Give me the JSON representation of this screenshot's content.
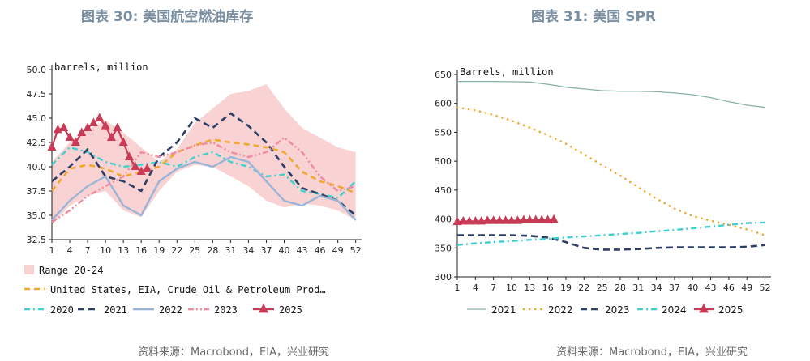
{
  "titles": {
    "left": "图表 30: 美国航空燃油库存",
    "right": "图表 31: 美国 SPR"
  },
  "sources": {
    "left": "资料来源：Macrobond，EIA，兴业研究",
    "right": "资料来源：Macrobond，EIA，兴业研究"
  },
  "colors": {
    "range": "#f9d3d3",
    "avg": "#f0a830",
    "y2020": "#40cfcf",
    "y2021": "#2e3f66",
    "y2022": "#9ab4d8",
    "y2023": "#f08a9e",
    "y2025": "#c83a55",
    "y2021_spr": "#86b2a6"
  },
  "chart_data": [
    {
      "id": "jet-fuel",
      "type": "line",
      "ylabel": "barrels, million",
      "ylim": [
        32.5,
        50
      ],
      "yticks": [
        "32.5",
        "35.0",
        "37.5",
        "40.0",
        "42.5",
        "45.0",
        "47.5",
        "50.0"
      ],
      "xlim": [
        1,
        53
      ],
      "xticks": [
        "1",
        "4",
        "7",
        "10",
        "13",
        "16",
        "19",
        "22",
        "25",
        "28",
        "31",
        "34",
        "37",
        "40",
        "43",
        "46",
        "49",
        "52"
      ],
      "range": {
        "name": "Range 20-24",
        "x": [
          1,
          4,
          7,
          10,
          13,
          16,
          19,
          22,
          25,
          28,
          31,
          34,
          37,
          40,
          43,
          46,
          49,
          52
        ],
        "low": [
          34.0,
          36.0,
          37.0,
          37.5,
          35.5,
          34.8,
          37.5,
          39.5,
          40.2,
          40.0,
          39.0,
          38.0,
          36.5,
          35.8,
          36.2,
          36.0,
          35.5,
          34.5
        ],
        "high": [
          40.5,
          42.5,
          43.8,
          44.8,
          43.5,
          42.0,
          40.5,
          41.8,
          44.5,
          46.0,
          47.5,
          47.8,
          48.5,
          46.0,
          44.0,
          43.0,
          42.0,
          41.5
        ]
      },
      "series": [
        {
          "name": "United States, EIA, Crude Oil & Petroleum Prod…",
          "key": "avg",
          "style": "dash-thick",
          "x": [
            1,
            4,
            7,
            10,
            13,
            16,
            19,
            22,
            25,
            28,
            31,
            34,
            37,
            40,
            43,
            46,
            49,
            52
          ],
          "y": [
            37.5,
            39.8,
            40.2,
            39.8,
            39.0,
            39.5,
            40.0,
            41.5,
            42.2,
            42.8,
            42.5,
            42.3,
            42.0,
            41.5,
            39.5,
            38.5,
            38.0,
            37.3
          ]
        },
        {
          "name": "2020",
          "key": "y2020",
          "style": "dashdot",
          "x": [
            1,
            4,
            7,
            10,
            13,
            16,
            19,
            22,
            25,
            28,
            31,
            34,
            37,
            40,
            43,
            46,
            49,
            52
          ],
          "y": [
            40.2,
            42.0,
            41.5,
            40.5,
            40.0,
            40.2,
            40.5,
            40.0,
            41.0,
            41.5,
            40.5,
            40.0,
            39.0,
            39.2,
            37.5,
            37.2,
            36.8,
            38.5
          ]
        },
        {
          "name": "2021",
          "key": "y2021",
          "style": "dash",
          "x": [
            1,
            4,
            7,
            10,
            13,
            16,
            19,
            22,
            25,
            28,
            31,
            34,
            37,
            40,
            43,
            46,
            49,
            52
          ],
          "y": [
            38.5,
            40.0,
            41.8,
            39.0,
            38.5,
            37.5,
            41.0,
            42.5,
            45.0,
            44.0,
            45.5,
            44.2,
            42.5,
            40.0,
            37.8,
            37.2,
            36.5,
            35.0
          ]
        },
        {
          "name": "2022",
          "key": "y2022",
          "style": "solid",
          "x": [
            1,
            4,
            7,
            10,
            13,
            16,
            19,
            22,
            25,
            28,
            31,
            34,
            37,
            40,
            43,
            46,
            49,
            52
          ],
          "y": [
            34.5,
            36.5,
            38.0,
            39.0,
            36.0,
            35.0,
            38.5,
            39.8,
            40.5,
            40.0,
            41.0,
            40.5,
            38.5,
            36.5,
            36.0,
            37.0,
            36.5,
            34.5
          ]
        },
        {
          "name": "2023",
          "key": "y2023",
          "style": "dashdotdot",
          "x": [
            1,
            4,
            7,
            10,
            13,
            16,
            19,
            22,
            25,
            28,
            31,
            34,
            37,
            40,
            43,
            46,
            49,
            52
          ],
          "y": [
            34.3,
            35.5,
            37.0,
            38.0,
            39.0,
            41.5,
            41.0,
            41.5,
            42.2,
            42.5,
            41.5,
            41.0,
            41.5,
            43.0,
            41.5,
            39.0,
            37.5,
            38.0
          ]
        },
        {
          "name": "2025",
          "key": "y2025",
          "style": "triangle",
          "x": [
            1,
            2,
            3,
            4,
            5,
            6,
            7,
            8,
            9,
            10,
            11,
            12,
            13,
            14,
            15,
            16,
            17
          ],
          "y": [
            42.0,
            43.8,
            44.0,
            43.0,
            42.5,
            43.5,
            44.0,
            44.5,
            45.0,
            44.2,
            43.0,
            44.0,
            42.5,
            41.0,
            40.0,
            39.5,
            39.8
          ]
        }
      ],
      "legend": [
        {
          "label": "Range 20-24",
          "key": "range",
          "style": "box"
        },
        {
          "label": "United States, EIA, Crude Oil & Petroleum Prod…",
          "key": "avg",
          "style": "dash-thick"
        },
        {
          "label": "2020",
          "key": "y2020",
          "style": "dashdot"
        },
        {
          "label": "2021",
          "key": "y2021",
          "style": "dash"
        },
        {
          "label": "2022",
          "key": "y2022",
          "style": "solid"
        },
        {
          "label": "2023",
          "key": "y2023",
          "style": "dashdotdot"
        },
        {
          "label": "2025",
          "key": "y2025",
          "style": "triangle"
        }
      ],
      "legend_position": "bottom",
      "grid": false
    },
    {
      "id": "spr",
      "type": "line",
      "ylabel": "Barrels, million",
      "ylim": [
        300,
        650
      ],
      "yticks": [
        "300",
        "350",
        "400",
        "450",
        "500",
        "550",
        "600",
        "650"
      ],
      "xlim": [
        1,
        53
      ],
      "xticks": [
        "1",
        "4",
        "7",
        "10",
        "13",
        "16",
        "19",
        "22",
        "25",
        "28",
        "31",
        "34",
        "37",
        "40",
        "43",
        "46",
        "49",
        "52"
      ],
      "series": [
        {
          "name": "2021",
          "key": "y2021_spr",
          "style": "solid-thin",
          "x": [
            1,
            7,
            13,
            16,
            19,
            22,
            25,
            28,
            31,
            34,
            37,
            40,
            43,
            46,
            49,
            52
          ],
          "y": [
            638,
            638,
            637,
            633,
            628,
            625,
            622,
            621,
            621,
            620,
            618,
            615,
            610,
            603,
            597,
            593
          ]
        },
        {
          "name": "2022",
          "key": "avg",
          "style": "dots",
          "x": [
            1,
            4,
            7,
            10,
            13,
            16,
            19,
            22,
            25,
            28,
            31,
            34,
            37,
            40,
            43,
            46,
            49,
            52
          ],
          "y": [
            593,
            588,
            580,
            570,
            558,
            545,
            530,
            512,
            493,
            475,
            455,
            435,
            418,
            405,
            397,
            390,
            382,
            372
          ]
        },
        {
          "name": "2023",
          "key": "y2021",
          "style": "dash",
          "x": [
            1,
            4,
            7,
            10,
            13,
            16,
            19,
            22,
            25,
            28,
            31,
            34,
            37,
            40,
            43,
            46,
            49,
            52
          ],
          "y": [
            372,
            372,
            372,
            372,
            371,
            368,
            360,
            350,
            347,
            347,
            348,
            350,
            351,
            351,
            351,
            351,
            352,
            355
          ]
        },
        {
          "name": "2024",
          "key": "y2020",
          "style": "dashdot",
          "x": [
            1,
            4,
            7,
            10,
            13,
            16,
            19,
            22,
            25,
            28,
            31,
            34,
            37,
            40,
            43,
            46,
            49,
            52
          ],
          "y": [
            355,
            358,
            360,
            362,
            364,
            366,
            368,
            370,
            372,
            374,
            376,
            379,
            381,
            384,
            387,
            390,
            393,
            394
          ]
        },
        {
          "name": "2025",
          "key": "y2025",
          "style": "triangle",
          "x": [
            1,
            2,
            3,
            4,
            5,
            6,
            7,
            8,
            9,
            10,
            11,
            12,
            13,
            14,
            15,
            16,
            17
          ],
          "y": [
            395,
            396,
            396,
            396,
            396,
            397,
            397,
            397,
            397,
            397,
            397,
            398,
            398,
            398,
            398,
            398,
            399
          ]
        }
      ],
      "legend": [
        {
          "label": "2021",
          "key": "y2021_spr",
          "style": "solid-thin"
        },
        {
          "label": "2022",
          "key": "avg",
          "style": "dots"
        },
        {
          "label": "2023",
          "key": "y2021",
          "style": "dash"
        },
        {
          "label": "2024",
          "key": "y2020",
          "style": "dashdot"
        },
        {
          "label": "2025",
          "key": "y2025",
          "style": "triangle"
        }
      ],
      "legend_position": "bottom",
      "grid": false
    }
  ]
}
